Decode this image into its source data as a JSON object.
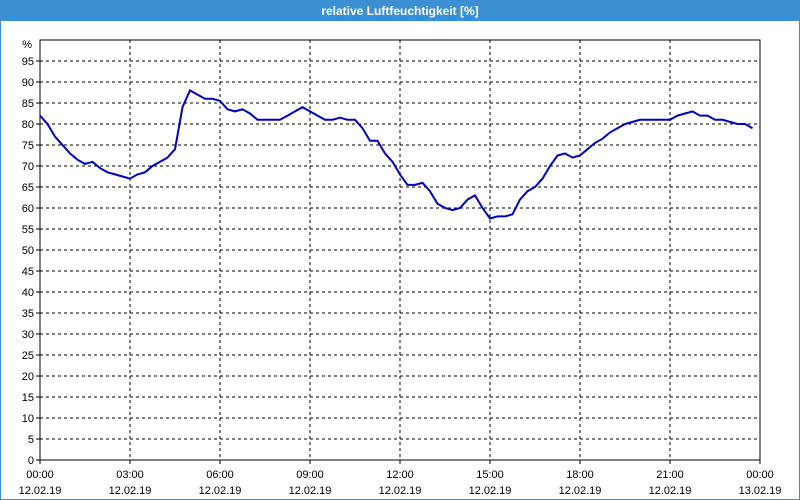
{
  "window": {
    "title": "relative Luftfeuchtigkeit [%]"
  },
  "colors": {
    "titlebar": "#3c8fd0",
    "line": "#0000c0",
    "grid": "#000000"
  },
  "chart_data": {
    "type": "line",
    "title": "relative Luftfeuchtigkeit [%]",
    "ylabel": "%",
    "ylim": [
      0,
      100
    ],
    "xlim": [
      0,
      24
    ],
    "grid": true,
    "y_ticks": [
      0,
      5,
      10,
      15,
      20,
      25,
      30,
      35,
      40,
      45,
      50,
      55,
      60,
      65,
      70,
      75,
      80,
      85,
      90,
      95
    ],
    "x_ticks": [
      {
        "t": 0,
        "time": "00:00",
        "date": "12.02.19"
      },
      {
        "t": 3,
        "time": "03:00",
        "date": "12.02.19"
      },
      {
        "t": 6,
        "time": "06:00",
        "date": "12.02.19"
      },
      {
        "t": 9,
        "time": "09:00",
        "date": "12.02.19"
      },
      {
        "t": 12,
        "time": "12:00",
        "date": "12.02.19"
      },
      {
        "t": 15,
        "time": "15:00",
        "date": "12.02.19"
      },
      {
        "t": 18,
        "time": "18:00",
        "date": "12.02.19"
      },
      {
        "t": 21,
        "time": "21:00",
        "date": "12.02.19"
      },
      {
        "t": 24,
        "time": "00:00",
        "date": "13.02.19"
      }
    ],
    "series": [
      {
        "x": [
          0,
          0.25,
          0.5,
          0.75,
          1,
          1.25,
          1.5,
          1.75,
          2,
          2.25,
          2.5,
          2.75,
          3,
          3.25,
          3.5,
          3.75,
          4,
          4.25,
          4.5,
          4.75,
          5,
          5.25,
          5.5,
          5.75,
          6,
          6.25,
          6.5,
          6.75,
          7,
          7.25,
          7.5,
          7.75,
          8,
          8.25,
          8.5,
          8.75,
          9,
          9.25,
          9.5,
          9.75,
          10,
          10.25,
          10.5,
          10.75,
          11,
          11.25,
          11.5,
          11.75,
          12,
          12.25,
          12.5,
          12.75,
          13,
          13.25,
          13.5,
          13.75,
          14,
          14.25,
          14.5,
          14.75,
          15,
          15.25,
          15.5,
          15.75,
          16,
          16.25,
          16.5,
          16.75,
          17,
          17.25,
          17.5,
          17.75,
          18,
          18.25,
          18.5,
          18.75,
          19,
          19.25,
          19.5,
          19.75,
          20,
          20.25,
          20.5,
          20.75,
          21,
          21.25,
          21.5,
          21.75,
          22,
          22.25,
          22.5,
          22.75,
          23,
          23.25,
          23.5,
          23.75
        ],
        "values": [
          82,
          80,
          77,
          75,
          73,
          71.5,
          70.5,
          71,
          69.5,
          68.5,
          68,
          67.5,
          67,
          68,
          68.5,
          70,
          71,
          72,
          74,
          84,
          88,
          87,
          86,
          86,
          85.5,
          83.5,
          83,
          83.5,
          82.5,
          81,
          81,
          81,
          81,
          82,
          83,
          84,
          83,
          82,
          81,
          81,
          81.5,
          81,
          81,
          79,
          76,
          76,
          73,
          71,
          68,
          65.5,
          65.5,
          66,
          64,
          61,
          60,
          59.5,
          60,
          62,
          63,
          60,
          57.5,
          58,
          58,
          58.5,
          62,
          64,
          65,
          67,
          70,
          72.5,
          73,
          72,
          72.5,
          74,
          75.5,
          76.5,
          78,
          79,
          80,
          80.5,
          81,
          81,
          81,
          81,
          81,
          82,
          82.5,
          83,
          82,
          82,
          81,
          81,
          80.5,
          80,
          80,
          79
        ]
      }
    ]
  }
}
